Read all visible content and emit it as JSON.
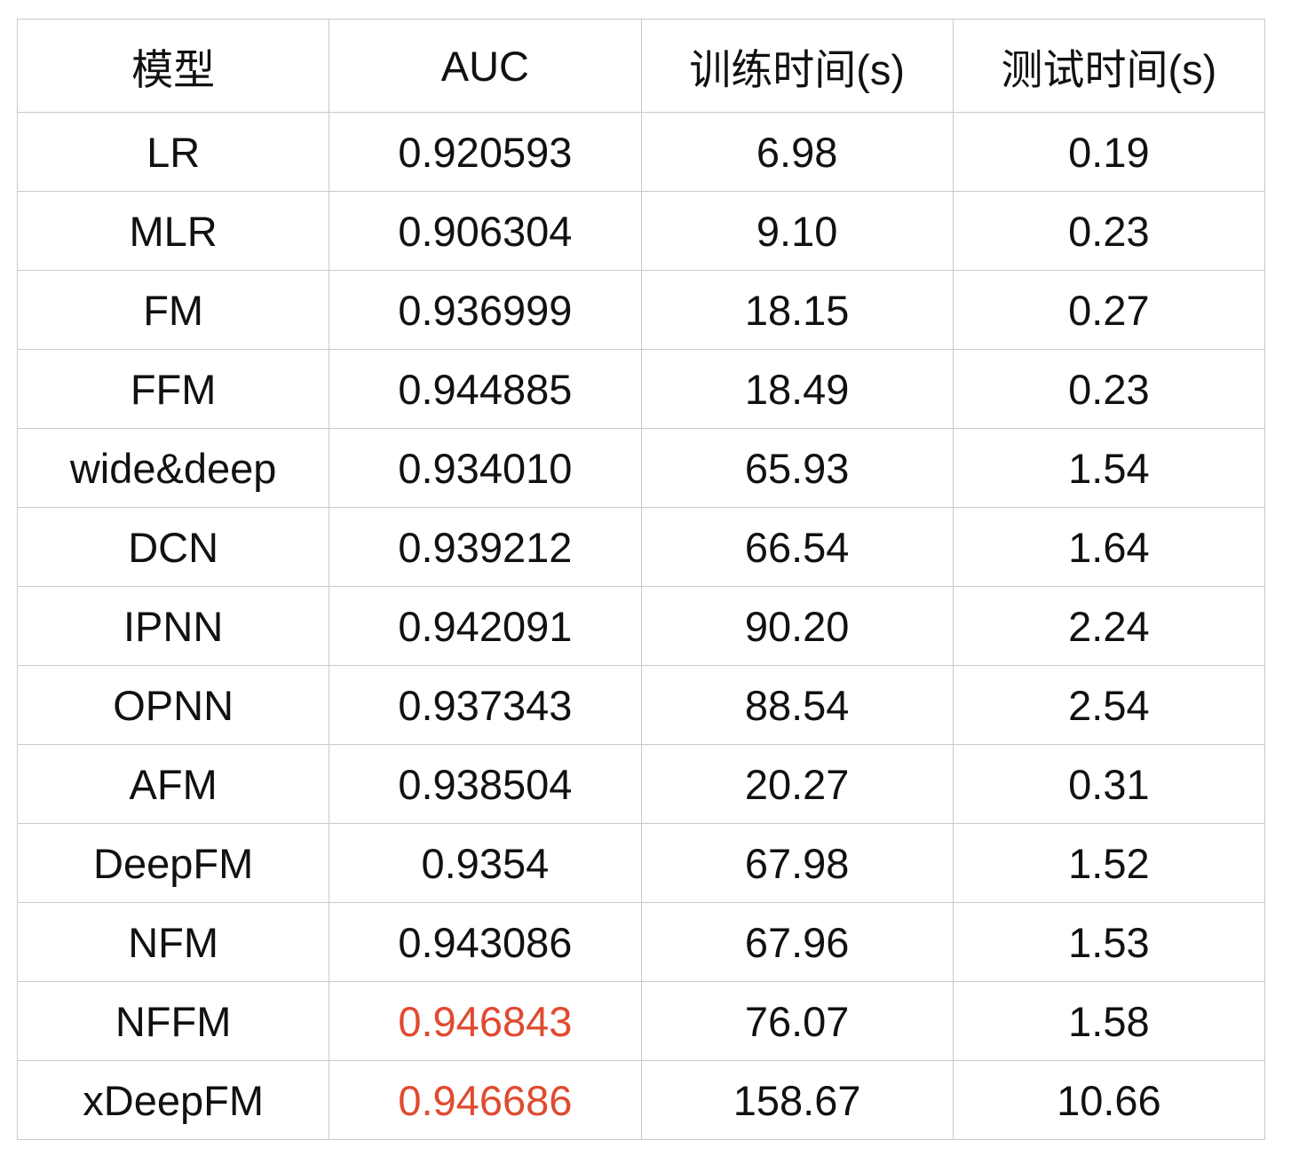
{
  "table": {
    "headers": [
      "模型",
      "AUC",
      "训练时间(s)",
      "测试时间(s)"
    ],
    "highlight_color": "#e04a2f",
    "rows": [
      {
        "model": "LR",
        "auc": "0.920593",
        "train_time": "6.98",
        "test_time": "0.19",
        "auc_highlight": false
      },
      {
        "model": "MLR",
        "auc": "0.906304",
        "train_time": "9.10",
        "test_time": "0.23",
        "auc_highlight": false
      },
      {
        "model": "FM",
        "auc": "0.936999",
        "train_time": "18.15",
        "test_time": "0.27",
        "auc_highlight": false
      },
      {
        "model": "FFM",
        "auc": "0.944885",
        "train_time": "18.49",
        "test_time": "0.23",
        "auc_highlight": false
      },
      {
        "model": "wide&deep",
        "auc": "0.934010",
        "train_time": "65.93",
        "test_time": "1.54",
        "auc_highlight": false
      },
      {
        "model": "DCN",
        "auc": "0.939212",
        "train_time": "66.54",
        "test_time": "1.64",
        "auc_highlight": false
      },
      {
        "model": "IPNN",
        "auc": "0.942091",
        "train_time": "90.20",
        "test_time": "2.24",
        "auc_highlight": false
      },
      {
        "model": "OPNN",
        "auc": "0.937343",
        "train_time": "88.54",
        "test_time": "2.54",
        "auc_highlight": false
      },
      {
        "model": "AFM",
        "auc": "0.938504",
        "train_time": "20.27",
        "test_time": "0.31",
        "auc_highlight": false
      },
      {
        "model": "DeepFM",
        "auc": "0.9354",
        "train_time": "67.98",
        "test_time": "1.52",
        "auc_highlight": false
      },
      {
        "model": "NFM",
        "auc": "0.943086",
        "train_time": "67.96",
        "test_time": "1.53",
        "auc_highlight": false
      },
      {
        "model": "NFFM",
        "auc": "0.946843",
        "train_time": "76.07",
        "test_time": "1.58",
        "auc_highlight": true
      },
      {
        "model": "xDeepFM",
        "auc": "0.946686",
        "train_time": "158.67",
        "test_time": "10.66",
        "auc_highlight": true
      }
    ]
  }
}
